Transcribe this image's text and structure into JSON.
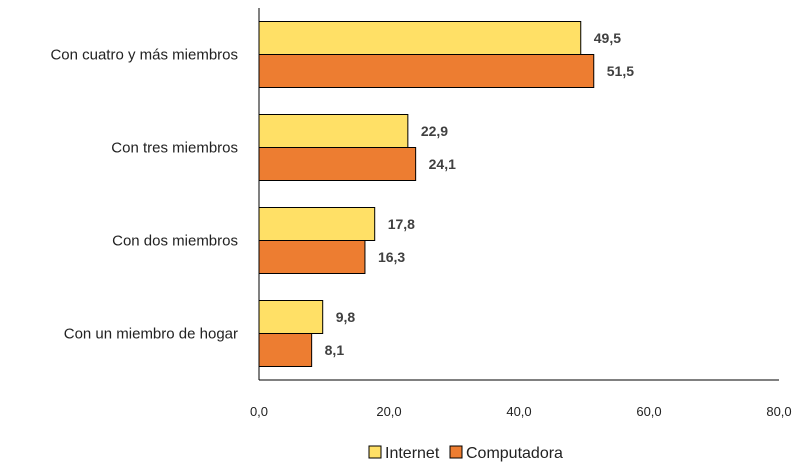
{
  "chart_data": {
    "type": "bar",
    "orientation": "horizontal",
    "categories": [
      "Con cuatro y más miembros",
      "Con tres miembros",
      "Con dos miembros",
      "Con un miembro de hogar"
    ],
    "series": [
      {
        "name": "Internet",
        "color": "#FFE066",
        "values": [
          49.5,
          22.9,
          17.8,
          9.8
        ],
        "labels": [
          "49,5",
          "22,9",
          "17,8",
          "9,8"
        ]
      },
      {
        "name": "Computadora",
        "color": "#ED7D31",
        "values": [
          51.5,
          24.1,
          16.3,
          8.1
        ],
        "labels": [
          "51,5",
          "24,1",
          "16,3",
          "8,1"
        ]
      }
    ],
    "xlim": [
      0,
      80
    ],
    "xticks": [
      0,
      20,
      40,
      60,
      80
    ],
    "xtick_labels": [
      "0,0",
      "20,0",
      "40,0",
      "60,0",
      "80,0"
    ],
    "grid": false,
    "legend_position": "bottom",
    "title": "",
    "xlabel": "",
    "ylabel": ""
  }
}
